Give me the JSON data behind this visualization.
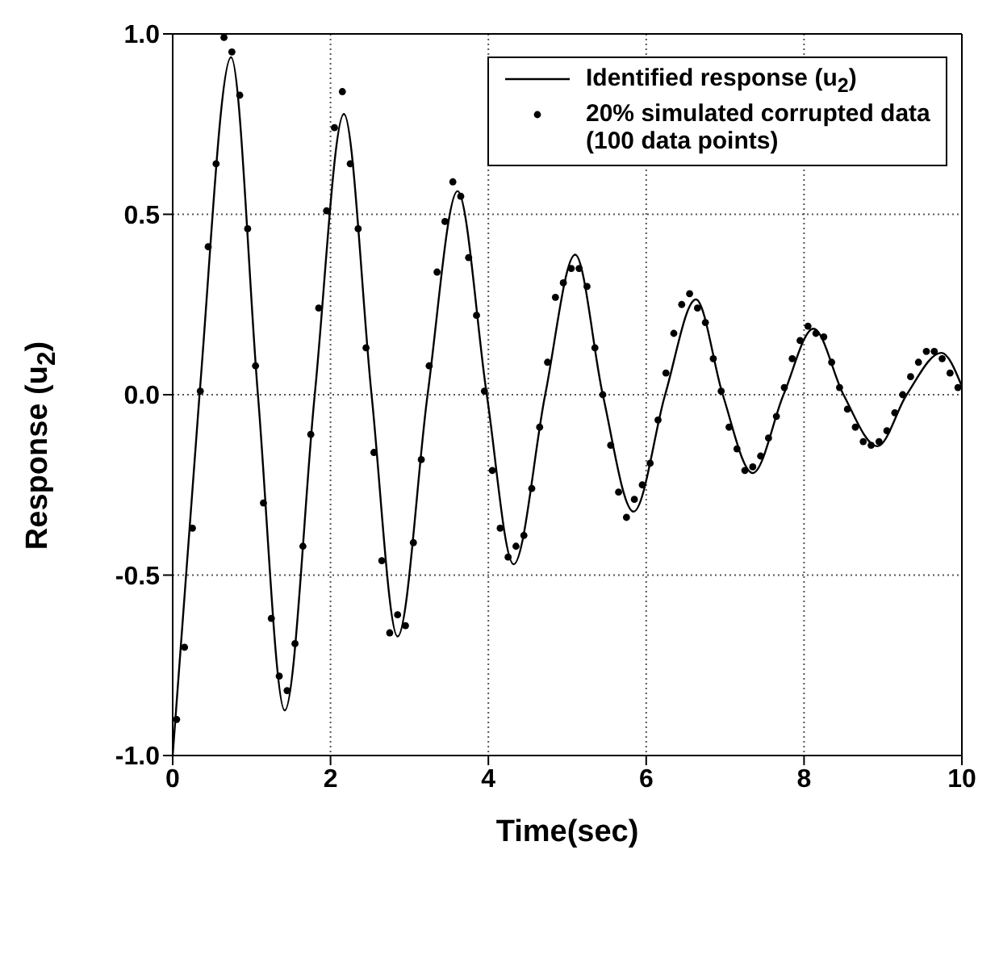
{
  "chart_data": {
    "type": "line",
    "xlabel": "Time(sec)",
    "ylabel": "Response (u$_{2}$)",
    "xlim": [
      0,
      10
    ],
    "xticks": [
      0,
      2,
      4,
      6,
      8,
      10
    ],
    "ylim": [
      -1,
      1
    ],
    "yticks": [
      {
        "value": -1,
        "label": "-1.0"
      },
      {
        "value": -0.5,
        "label": "-0.5"
      },
      {
        "value": 0,
        "label": "0.0"
      },
      {
        "value": 0.5,
        "label": "0.5"
      },
      {
        "value": 1,
        "label": "1.0"
      }
    ],
    "grid": true,
    "legend": "top right",
    "series": [
      {
        "name": "Identified response (u$_{2}$)",
        "color": "#000000",
        "line_style": "solid",
        "marker": "none",
        "x": [
          0,
          0.34,
          0.74,
          1.08,
          1.42,
          1.8,
          2.17,
          2.52,
          2.85,
          3.23,
          3.61,
          3.98,
          4.32,
          4.72,
          5.1,
          5.45,
          5.84,
          6.24,
          6.63,
          6.97,
          7.35,
          7.74,
          8.12,
          8.5,
          8.93,
          9.3,
          9.74,
          10
        ],
        "values": [
          -1,
          0,
          0.935,
          0,
          -0.875,
          0,
          0.778,
          0,
          -0.67,
          0,
          0.564,
          0,
          -0.47,
          0,
          0.388,
          0,
          -0.324,
          0,
          0.264,
          0,
          -0.217,
          0,
          0.183,
          0,
          -0.143,
          0,
          0.116,
          0.023
        ]
      },
      {
        "name": "20% simulated corrupted data (100 data points)",
        "type": "scatter",
        "color": "#000000",
        "marker": "circle",
        "x": [
          0.05,
          0.15,
          0.25,
          0.35,
          0.45,
          0.55,
          0.65,
          0.75,
          0.85,
          0.95,
          1.05,
          1.15,
          1.25,
          1.35,
          1.45,
          1.55,
          1.65,
          1.75,
          1.85,
          1.95,
          2.05,
          2.15,
          2.25,
          2.35,
          2.45,
          2.55,
          2.65,
          2.75,
          2.85,
          2.95,
          3.05,
          3.15,
          3.25,
          3.35,
          3.45,
          3.55,
          3.65,
          3.75,
          3.85,
          3.95,
          4.05,
          4.15,
          4.25,
          4.35,
          4.45,
          4.55,
          4.65,
          4.75,
          4.85,
          4.95,
          5.05,
          5.15,
          5.25,
          5.35,
          5.45,
          5.55,
          5.65,
          5.75,
          5.85,
          5.95,
          6.05,
          6.15,
          6.25,
          6.35,
          6.45,
          6.55,
          6.65,
          6.75,
          6.85,
          6.95,
          7.05,
          7.15,
          7.25,
          7.35,
          7.45,
          7.55,
          7.65,
          7.75,
          7.85,
          7.95,
          8.05,
          8.15,
          8.25,
          8.35,
          8.45,
          8.55,
          8.65,
          8.75,
          8.85,
          8.95,
          9.05,
          9.15,
          9.25,
          9.35,
          9.45,
          9.55,
          9.65,
          9.75,
          9.85,
          9.95
        ],
        "values": [
          -0.9,
          -0.7,
          -0.37,
          0.01,
          0.41,
          0.64,
          0.99,
          0.95,
          0.83,
          0.46,
          0.08,
          -0.3,
          -0.62,
          -0.78,
          -0.82,
          -0.69,
          -0.42,
          -0.11,
          0.24,
          0.51,
          0.74,
          0.84,
          0.64,
          0.46,
          0.13,
          -0.16,
          -0.46,
          -0.66,
          -0.61,
          -0.64,
          -0.41,
          -0.18,
          0.08,
          0.34,
          0.48,
          0.59,
          0.55,
          0.38,
          0.22,
          0.01,
          -0.21,
          -0.37,
          -0.45,
          -0.42,
          -0.39,
          -0.26,
          -0.09,
          0.09,
          0.27,
          0.31,
          0.35,
          0.35,
          0.3,
          0.13,
          0,
          -0.14,
          -0.27,
          -0.34,
          -0.29,
          -0.25,
          -0.19,
          -0.07,
          0.06,
          0.17,
          0.25,
          0.28,
          0.24,
          0.2,
          0.1,
          0.01,
          -0.09,
          -0.15,
          -0.21,
          -0.2,
          -0.17,
          -0.12,
          -0.06,
          0.02,
          0.1,
          0.15,
          0.19,
          0.17,
          0.16,
          0.09,
          0.02,
          -0.04,
          -0.09,
          -0.13,
          -0.14,
          -0.13,
          -0.1,
          -0.05,
          0,
          0.05,
          0.09,
          0.12,
          0.12,
          0.1,
          0.06,
          0.02
        ]
      }
    ]
  }
}
